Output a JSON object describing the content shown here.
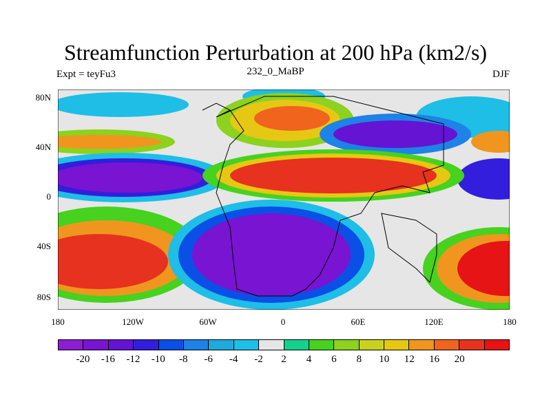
{
  "title": "Streamfunction Perturbation at 200 hPa (km2/s)",
  "subtitle_left": "Expt = teyFu3",
  "subtitle_center": "232_0_MaBP",
  "subtitle_right": "DJF",
  "y_labels": [
    "80N",
    "40N",
    "0",
    "40S",
    "80S"
  ],
  "x_labels": [
    "180",
    "120W",
    "60W",
    "0",
    "60E",
    "120E",
    "180"
  ],
  "colorbar": {
    "colors": [
      "#8c1ed2",
      "#7814d2",
      "#6414d2",
      "#321edc",
      "#0a50e6",
      "#1e82e6",
      "#1eaadc",
      "#1ebee6",
      "#e6e6e6",
      "#14d28c",
      "#46d21e",
      "#8cd21e",
      "#c8d21e",
      "#e6c814",
      "#f0961e",
      "#f0641e",
      "#e6321e",
      "#e61414"
    ],
    "labels": [
      "-20",
      "-16",
      "-12",
      "-10",
      "-8",
      "-6",
      "-4",
      "-2",
      "2",
      "4",
      "6",
      "8",
      "10",
      "12",
      "16",
      "20"
    ]
  }
}
